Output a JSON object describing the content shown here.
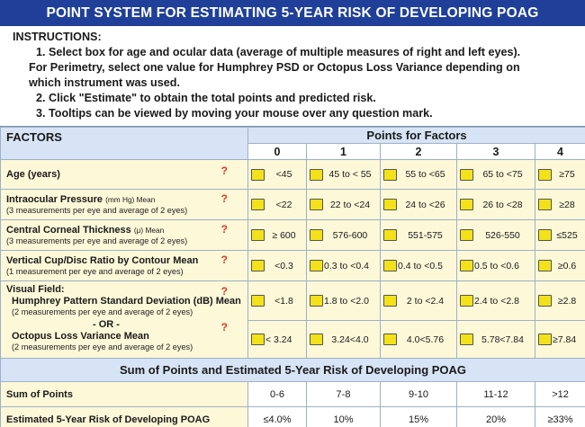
{
  "title": "POINT SYSTEM FOR ESTIMATING 5-YEAR RISK OF DEVELOPING POAG",
  "instructions": {
    "header": "INSTRUCTIONS:",
    "line1": "1. Select box for age and ocular data (average of multiple measures of right and left eyes).",
    "line2": "For Perimetry, select one value for Humphrey PSD or Octopus Loss Variance depending on",
    "line3": "which instrument was used.",
    "step2": "2. Click \"Estimate\" to obtain the total points and predicted risk.",
    "step3": "3. Tooltips can be viewed by moving your mouse over any question mark."
  },
  "table": {
    "factors_header": "FACTORS",
    "points_header": "Points for Factors",
    "point_cols": [
      "0",
      "1",
      "2",
      "3",
      "4"
    ],
    "help_glyph": "?",
    "rows": [
      {
        "name": "Age (years)",
        "sub": "",
        "options": [
          "<45",
          "45 to < 55",
          "55 to <65",
          "65 to <75",
          "≥75"
        ]
      },
      {
        "name": "Intraocular Pressure",
        "name_note": "(mm Hg) Mean",
        "sub": "(3 measurements per eye and average of 2 eyes)",
        "options": [
          "<22",
          "22 to <24",
          "24 to <26",
          "26 to <28",
          "≥28"
        ]
      },
      {
        "name": "Central Corneal Thickness",
        "name_note": "(μ) Mean",
        "sub": "(3 measurements per eye and average of 2 eyes)",
        "options": [
          "≥ 600",
          "576-600",
          "551-575",
          "526-550",
          "≤525"
        ]
      },
      {
        "name": "Vertical Cup/Disc Ratio by Contour Mean",
        "sub": "(1 measurement per eye and average of 2 eyes)",
        "options": [
          "<0.3",
          "0.3 to <0.4",
          "0.4 to <0.5",
          "0.5 to <0.6",
          "≥0.6"
        ]
      }
    ],
    "visual_field": {
      "title": "Visual Field:",
      "humphrey_name": "Humphrey Pattern Standard Deviation (dB) Mean",
      "humphrey_sub": "(2 measurements per eye and average of 2 eyes)",
      "humphrey_options": [
        "<1.8",
        "1.8 to <2.0",
        "2 to <2.4",
        "2.4 to <2.8",
        "≥2.8"
      ],
      "or_text": "- OR -",
      "octopus_name": "Octopus Loss Variance Mean",
      "octopus_sub": "(2 measurements per eye and average of 2 eyes)",
      "octopus_options": [
        "< 3.24",
        "3.24<4.0",
        "4.0<5.76",
        "5.78<7.84",
        "≥7.84"
      ]
    },
    "summary_header": "Sum of Points and Estimated 5-Year Risk of Developing POAG",
    "sum_label": "Sum of Points",
    "sum_values": [
      "0-6",
      "7-8",
      "9-10",
      "11-12",
      ">12"
    ],
    "risk_label": "Estimated 5-Year Risk of Developing POAG",
    "risk_values": [
      "≤4.0%",
      "10%",
      "15%",
      "20%",
      "≥33%"
    ]
  }
}
